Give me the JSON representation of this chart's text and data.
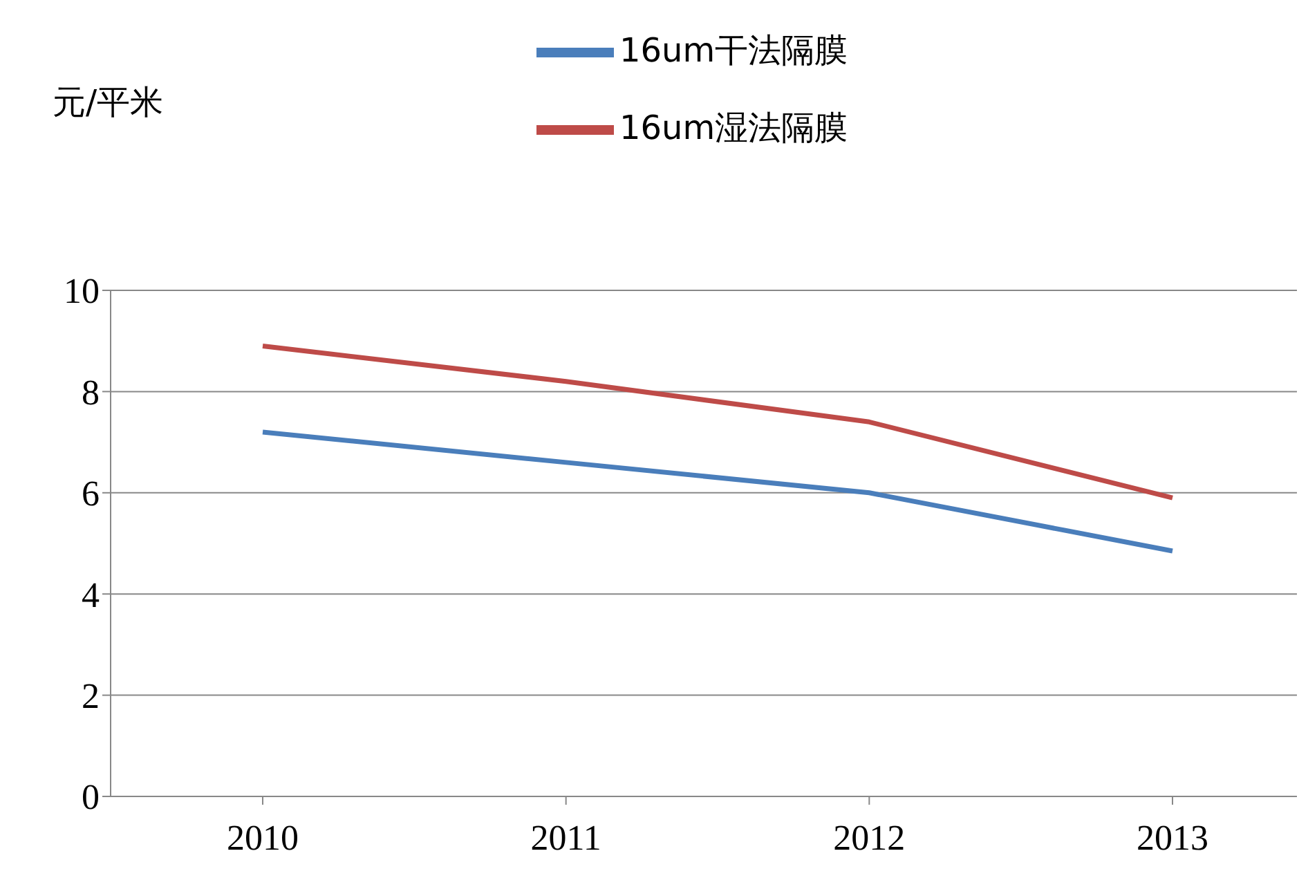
{
  "chart_data": {
    "type": "line",
    "ylabel": "元/平米",
    "categories": [
      "2010",
      "2011",
      "2012",
      "2013"
    ],
    "series": [
      {
        "name": "16um干法隔膜",
        "color": "#4a7ebb",
        "values": [
          7.2,
          6.6,
          6.0,
          4.85
        ]
      },
      {
        "name": "16um湿法隔膜",
        "color": "#be4b48",
        "values": [
          8.9,
          8.2,
          7.4,
          5.9
        ]
      }
    ],
    "ylim": [
      0,
      10
    ],
    "yticks": [
      0,
      2,
      4,
      6,
      8,
      10
    ],
    "grid": "y",
    "legend": "top",
    "marker": "none",
    "line_style": "solid"
  }
}
